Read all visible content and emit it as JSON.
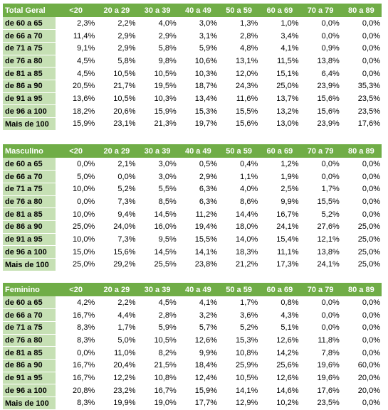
{
  "columns": [
    "<20",
    "20 a 29",
    "30 a 39",
    "40 a 49",
    "50 a 59",
    "60 a 69",
    "70 a 79",
    "80 a 89"
  ],
  "tables": [
    {
      "title": "Total Geral",
      "rows": [
        {
          "label": "de 60 a 65",
          "values": [
            "2,3%",
            "2,2%",
            "4,0%",
            "3,0%",
            "1,3%",
            "1,0%",
            "0,0%",
            "0,0%"
          ]
        },
        {
          "label": "de 66 a 70",
          "values": [
            "11,4%",
            "2,9%",
            "2,9%",
            "3,1%",
            "2,8%",
            "3,4%",
            "0,0%",
            "0,0%"
          ]
        },
        {
          "label": "de 71 a 75",
          "values": [
            "9,1%",
            "2,9%",
            "5,8%",
            "5,9%",
            "4,8%",
            "4,1%",
            "0,9%",
            "0,0%"
          ]
        },
        {
          "label": "de 76 a 80",
          "values": [
            "4,5%",
            "5,8%",
            "9,8%",
            "10,6%",
            "13,1%",
            "11,5%",
            "13,8%",
            "0,0%"
          ]
        },
        {
          "label": "de 81 a 85",
          "values": [
            "4,5%",
            "10,5%",
            "10,5%",
            "10,3%",
            "12,0%",
            "15,1%",
            "6,4%",
            "0,0%"
          ]
        },
        {
          "label": "de 86 a 90",
          "values": [
            "20,5%",
            "21,7%",
            "19,5%",
            "18,7%",
            "24,3%",
            "25,0%",
            "23,9%",
            "35,3%"
          ]
        },
        {
          "label": "de 91 a 95",
          "values": [
            "13,6%",
            "10,5%",
            "10,3%",
            "13,4%",
            "11,6%",
            "13,7%",
            "15,6%",
            "23,5%"
          ]
        },
        {
          "label": "de 96 a 100",
          "values": [
            "18,2%",
            "20,6%",
            "15,9%",
            "15,3%",
            "15,5%",
            "13,2%",
            "15,6%",
            "23,5%"
          ]
        },
        {
          "label": "Mais de 100",
          "values": [
            "15,9%",
            "23,1%",
            "21,3%",
            "19,7%",
            "15,6%",
            "13,0%",
            "23,9%",
            "17,6%"
          ]
        }
      ]
    },
    {
      "title": "Masculino",
      "rows": [
        {
          "label": "de 60 a 65",
          "values": [
            "0,0%",
            "2,1%",
            "3,0%",
            "0,5%",
            "0,4%",
            "1,2%",
            "0,0%",
            "0,0%"
          ]
        },
        {
          "label": "de 66 a 70",
          "values": [
            "5,0%",
            "0,0%",
            "3,0%",
            "2,9%",
            "1,1%",
            "1,9%",
            "0,0%",
            "0,0%"
          ]
        },
        {
          "label": "de 71 a 75",
          "values": [
            "10,0%",
            "5,2%",
            "5,5%",
            "6,3%",
            "4,0%",
            "2,5%",
            "1,7%",
            "0,0%"
          ]
        },
        {
          "label": "de 76 a 80",
          "values": [
            "0,0%",
            "7,3%",
            "8,5%",
            "6,3%",
            "8,6%",
            "9,9%",
            "15,5%",
            "0,0%"
          ]
        },
        {
          "label": "de 81 a 85",
          "values": [
            "10,0%",
            "9,4%",
            "14,5%",
            "11,2%",
            "14,4%",
            "16,7%",
            "5,2%",
            "0,0%"
          ]
        },
        {
          "label": "de 86 a 90",
          "values": [
            "25,0%",
            "24,0%",
            "16,0%",
            "19,4%",
            "18,0%",
            "24,1%",
            "27,6%",
            "25,0%"
          ]
        },
        {
          "label": "de 91 a 95",
          "values": [
            "10,0%",
            "7,3%",
            "9,5%",
            "15,5%",
            "14,0%",
            "15,4%",
            "12,1%",
            "25,0%"
          ]
        },
        {
          "label": "de 96 a 100",
          "values": [
            "15,0%",
            "15,6%",
            "14,5%",
            "14,1%",
            "18,3%",
            "11,1%",
            "13,8%",
            "25,0%"
          ]
        },
        {
          "label": "Mais de 100",
          "values": [
            "25,0%",
            "29,2%",
            "25,5%",
            "23,8%",
            "21,2%",
            "17,3%",
            "24,1%",
            "25,0%"
          ]
        }
      ]
    },
    {
      "title": "Feminino",
      "rows": [
        {
          "label": "de 60 a 65",
          "values": [
            "4,2%",
            "2,2%",
            "4,5%",
            "4,1%",
            "1,7%",
            "0,8%",
            "0,0%",
            "0,0%"
          ]
        },
        {
          "label": "de 66 a 70",
          "values": [
            "16,7%",
            "4,4%",
            "2,8%",
            "3,2%",
            "3,6%",
            "4,3%",
            "0,0%",
            "0,0%"
          ]
        },
        {
          "label": "de 71 a 75",
          "values": [
            "8,3%",
            "1,7%",
            "5,9%",
            "5,7%",
            "5,2%",
            "5,1%",
            "0,0%",
            "0,0%"
          ]
        },
        {
          "label": "de 76 a 80",
          "values": [
            "8,3%",
            "5,0%",
            "10,5%",
            "12,6%",
            "15,3%",
            "12,6%",
            "11,8%",
            "0,0%"
          ]
        },
        {
          "label": "de 81 a 85",
          "values": [
            "0,0%",
            "11,0%",
            "8,2%",
            "9,9%",
            "10,8%",
            "14,2%",
            "7,8%",
            "0,0%"
          ]
        },
        {
          "label": "de 86 a 90",
          "values": [
            "16,7%",
            "20,4%",
            "21,5%",
            "18,4%",
            "25,9%",
            "25,6%",
            "19,6%",
            "60,0%"
          ]
        },
        {
          "label": "de 91 a 95",
          "values": [
            "16,7%",
            "12,2%",
            "10,8%",
            "12,4%",
            "10,5%",
            "12,6%",
            "19,6%",
            "20,0%"
          ]
        },
        {
          "label": "de 96 a 100",
          "values": [
            "20,8%",
            "23,2%",
            "16,7%",
            "15,9%",
            "14,1%",
            "14,6%",
            "17,6%",
            "20,0%"
          ]
        },
        {
          "label": "Mais de 100",
          "values": [
            "8,3%",
            "19,9%",
            "19,0%",
            "17,7%",
            "12,9%",
            "10,2%",
            "23,5%",
            "0,0%"
          ]
        }
      ]
    }
  ]
}
